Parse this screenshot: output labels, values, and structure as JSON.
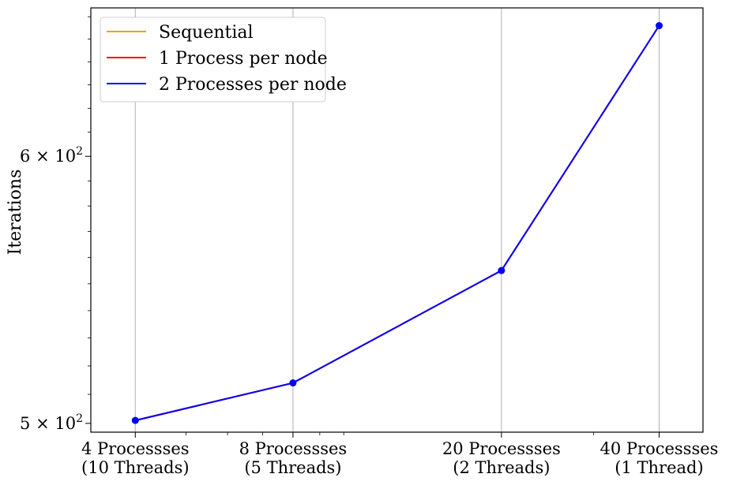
{
  "chart_data": {
    "type": "line",
    "title": "",
    "xlabel": "",
    "ylabel": "Iterations",
    "x_scale": "log",
    "y_scale": "log",
    "categories": [
      {
        "value": 4,
        "line1": "4 Processses",
        "line2": "(10 Threads)"
      },
      {
        "value": 8,
        "line1": "8 Processses",
        "line2": "(5 Threads)"
      },
      {
        "value": 20,
        "line1": "20 Processses",
        "line2": "(2 Threads)"
      },
      {
        "value": 40,
        "line1": "40 Processses",
        "line2": "(1 Thread)"
      }
    ],
    "y_ticks": [
      {
        "value": 500,
        "mantissa": "5",
        "base": "10",
        "exp": "2"
      },
      {
        "value": 600,
        "mantissa": "6",
        "base": "10",
        "exp": "2"
      }
    ],
    "ylim": [
      497,
      664
    ],
    "xlim": [
      3.29,
      48.5
    ],
    "grid": "vertical at x ticks",
    "legend_position": "top-left",
    "series": [
      {
        "name": "Sequential",
        "color": "#ff9900",
        "values": [
          501,
          514,
          555,
          656
        ]
      },
      {
        "name": "1 Process per node",
        "color": "#ff0000",
        "values": [
          501,
          514,
          555,
          656
        ]
      },
      {
        "name": "2 Processes per node",
        "color": "#0000ff",
        "values": [
          501,
          514,
          555,
          656
        ]
      }
    ],
    "markers": {
      "color": "#0000ff",
      "values": [
        501,
        514,
        555,
        656
      ]
    }
  }
}
